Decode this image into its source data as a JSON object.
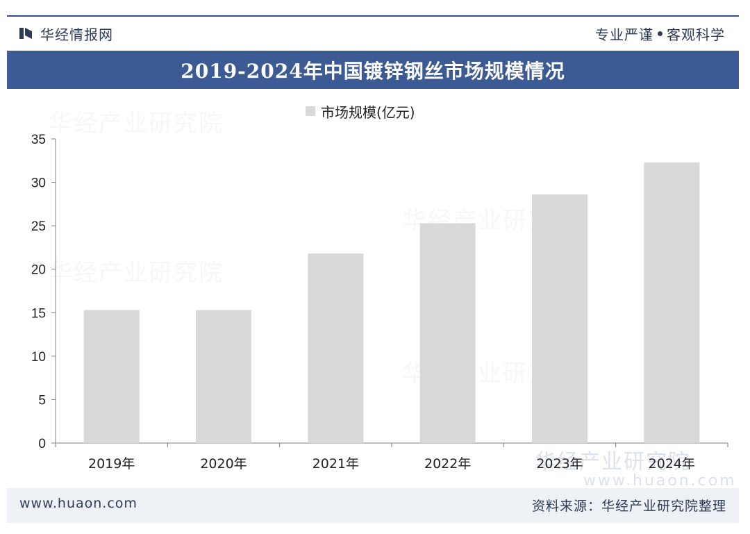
{
  "header": {
    "brand_name": "华经情报网",
    "slogan_left": "专业严谨",
    "slogan_right": "客观科学"
  },
  "title": "2019-2024年中国镀锌钢丝市场规模情况",
  "legend": {
    "series_label": "市场规模(亿元)"
  },
  "footer": {
    "url": "www.huaon.com",
    "source": "资料来源：华经产业研究院整理"
  },
  "watermark": {
    "text": "华经产业研究院",
    "url": "www.huaon.com"
  },
  "colors": {
    "bar": "#d9d9d9",
    "title_band": "#3c5a93",
    "text": "#2e3b57"
  },
  "chart_data": {
    "type": "bar",
    "categories": [
      "2019年",
      "2020年",
      "2021年",
      "2022年",
      "2023年",
      "2024年"
    ],
    "series": [
      {
        "name": "市场规模(亿元)",
        "values": [
          15.3,
          15.3,
          21.8,
          25.3,
          28.6,
          32.3
        ]
      }
    ],
    "ylim": [
      0,
      35
    ],
    "yticks": [
      0,
      5,
      10,
      15,
      20,
      25,
      30,
      35
    ],
    "grid": false,
    "legend": "top-center"
  }
}
